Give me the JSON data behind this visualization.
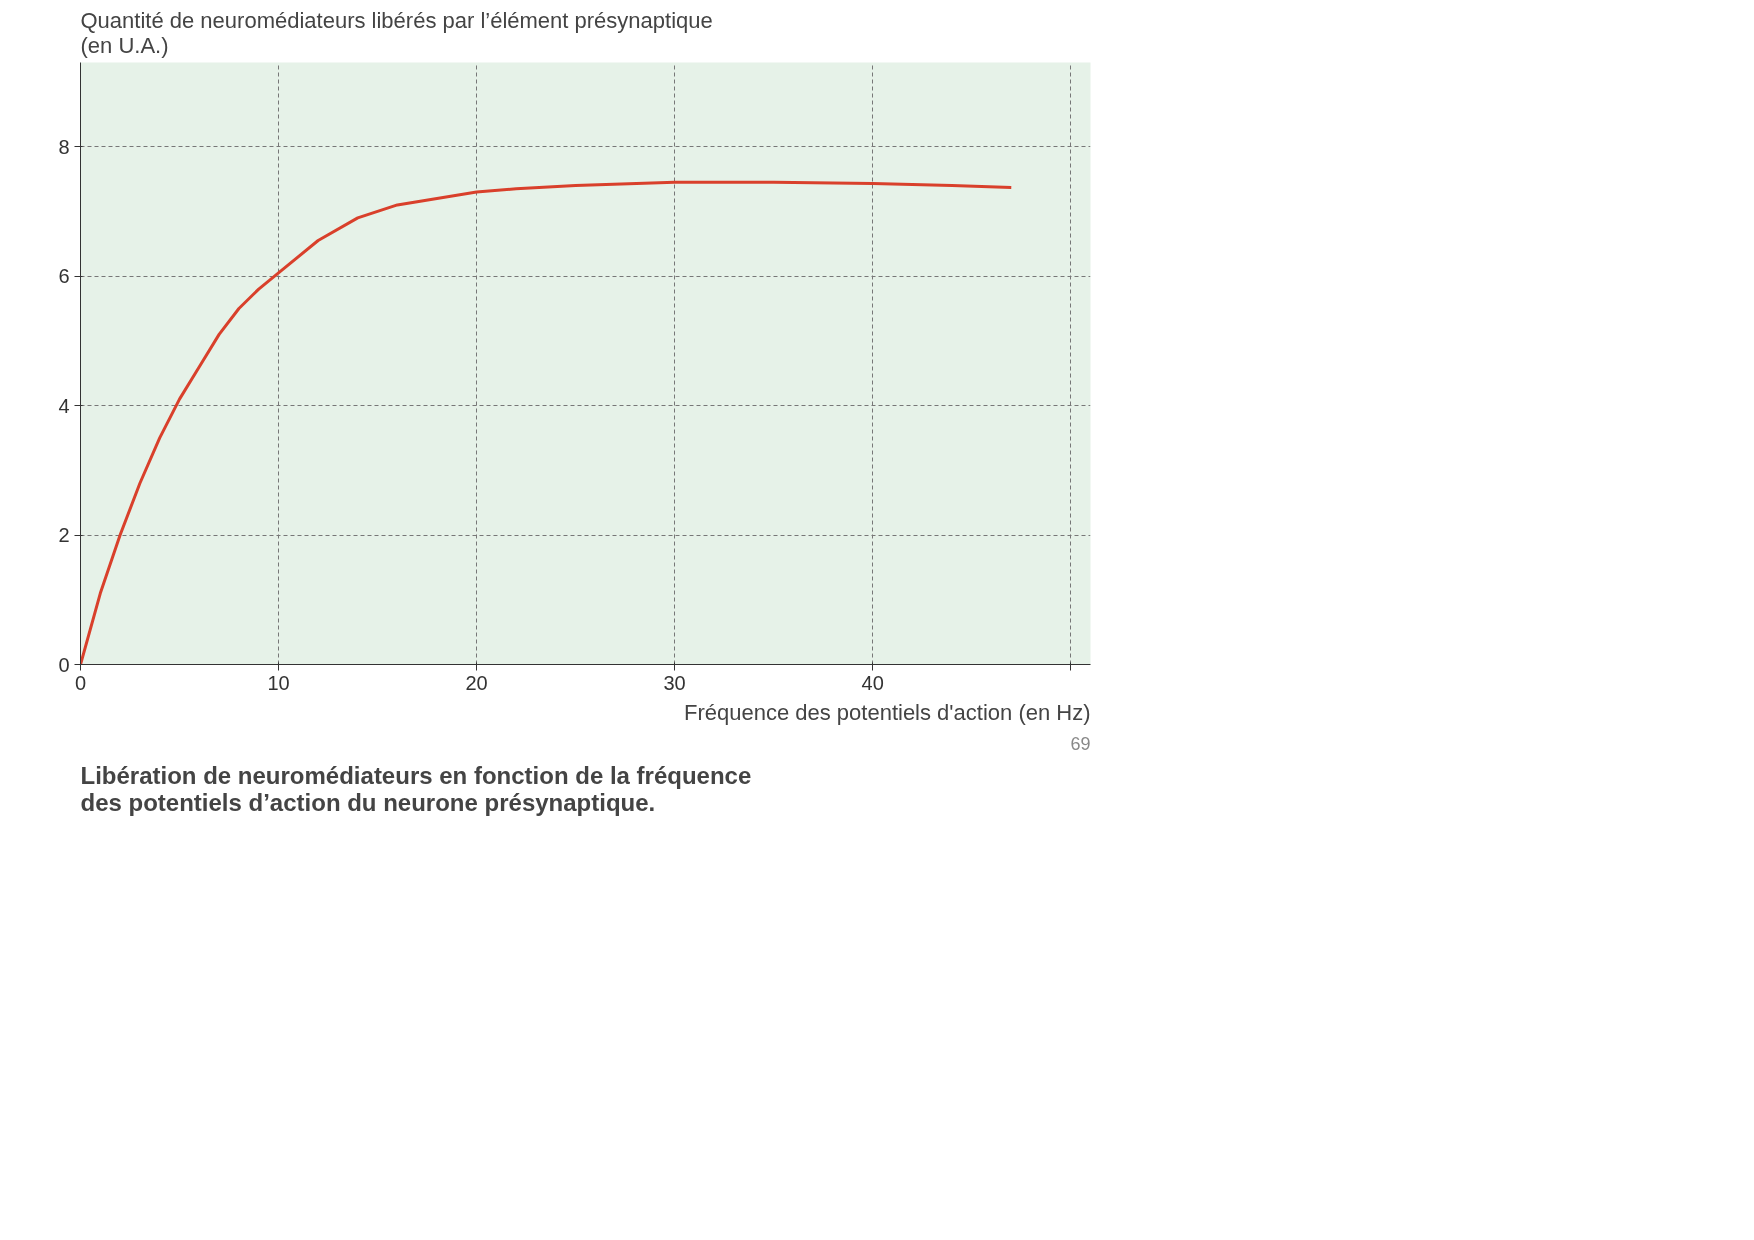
{
  "chart_data": {
    "type": "line",
    "ylabel": "Quantité de neuromédiateurs libérés par l’élément présynaptique\n(en U.A.)",
    "xlabel": "Fréquence des potentiels d'action (en Hz)",
    "x": [
      0,
      1,
      2,
      3,
      4,
      5,
      6,
      7,
      8,
      9,
      10,
      12,
      14,
      16,
      18,
      20,
      22,
      25,
      30,
      35,
      40,
      44,
      47
    ],
    "series": [
      {
        "color": "#d9402b",
        "values": [
          0,
          1.1,
          2.0,
          2.8,
          3.5,
          4.1,
          4.6,
          5.1,
          5.5,
          5.8,
          6.05,
          6.55,
          6.9,
          7.1,
          7.2,
          7.3,
          7.35,
          7.4,
          7.45,
          7.45,
          7.43,
          7.4,
          7.37
        ]
      }
    ],
    "xlim": [
      0,
      51
    ],
    "ylim": [
      0,
      9.3
    ],
    "xticks": [
      0,
      10,
      20,
      30,
      40,
      {
        "value": 50,
        "label": null
      }
    ],
    "yticks": [
      0,
      2,
      4,
      6,
      8
    ],
    "grid": true,
    "line_style": "solid",
    "annotations": [
      "Libération de neuromédiateurs en fonction de la fréquence\ndes potentiels d’action du neurone présynaptique.",
      "69"
    ]
  }
}
